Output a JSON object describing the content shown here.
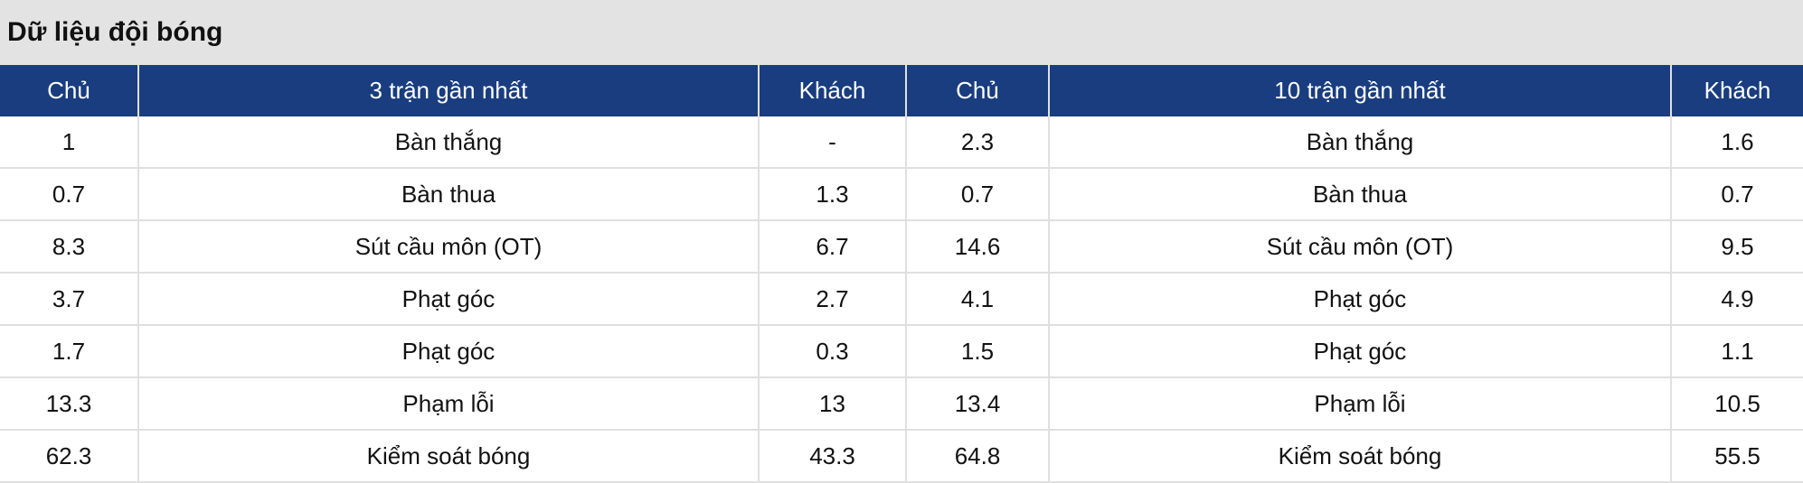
{
  "title": "Dữ liệu đội bóng",
  "headers": [
    "Chủ",
    "3 trận gần nhất",
    "Khách",
    "Chủ",
    "10 trận gần nhất",
    "Khách"
  ],
  "rows": [
    [
      "1",
      "Bàn thắng",
      "-",
      "2.3",
      "Bàn thắng",
      "1.6"
    ],
    [
      "0.7",
      "Bàn thua",
      "1.3",
      "0.7",
      "Bàn thua",
      "0.7"
    ],
    [
      "8.3",
      "Sút cầu môn (OT)",
      "6.7",
      "14.6",
      "Sút cầu môn (OT)",
      "9.5"
    ],
    [
      "3.7",
      "Phạt góc",
      "2.7",
      "4.1",
      "Phạt góc",
      "4.9"
    ],
    [
      "1.7",
      "Phạt góc",
      "0.3",
      "1.5",
      "Phạt góc",
      "1.1"
    ],
    [
      "13.3",
      "Phạm lỗi",
      "13",
      "13.4",
      "Phạm lỗi",
      "10.5"
    ],
    [
      "62.3",
      "Kiểm soát bóng",
      "43.3",
      "64.8",
      "Kiểm soát bóng",
      "55.5"
    ]
  ],
  "colors": {
    "header_bg": "#193d7f",
    "title_bg": "#e3e3e3"
  }
}
